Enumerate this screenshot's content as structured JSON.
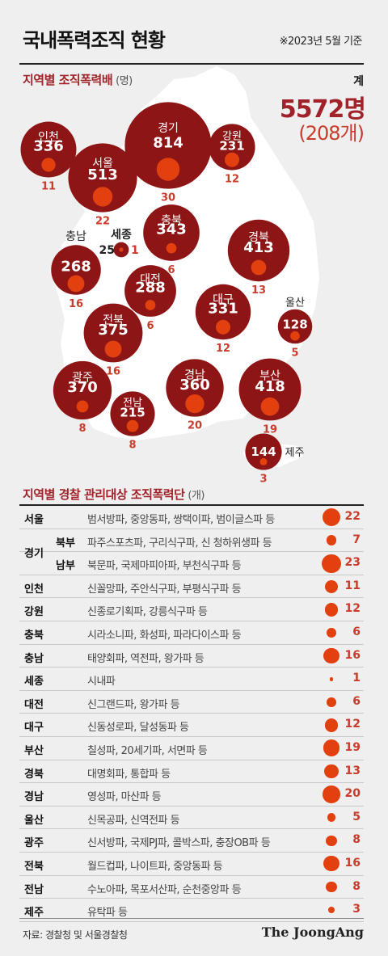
{
  "title": "국내폭력조직 현황",
  "as_of": "※2023년 5월 기준",
  "section1": {
    "label": "지역별 조직폭력배",
    "unit": "(명)"
  },
  "total": {
    "label": "계",
    "members": "5572명",
    "organizations": "(208개)"
  },
  "section2": {
    "label": "지역별 경찰 관리대상 조직폭력단",
    "unit": "(개)"
  },
  "gyeonggi_label": "경기",
  "source": "자료: 경찰청 및 서울경찰청",
  "logo": "The JoongAng",
  "colors": {
    "circle": "#8e1515",
    "inner_dot": "#e3400f",
    "accent": "#a2222a",
    "count": "#c93c2c",
    "map": "#ffffff"
  },
  "chart_data": {
    "type": "bubble-map",
    "title": "지역별 조직폭력배",
    "regions": [
      {
        "name": "인천",
        "members": 336,
        "orgs": 11
      },
      {
        "name": "경기",
        "members": 814,
        "orgs": 30
      },
      {
        "name": "강원",
        "members": 231,
        "orgs": 12
      },
      {
        "name": "서울",
        "members": 513,
        "orgs": 22
      },
      {
        "name": "충북",
        "members": 343,
        "orgs": 6
      },
      {
        "name": "세종",
        "members": 25,
        "orgs": 1
      },
      {
        "name": "충남",
        "members": 268,
        "orgs": 16
      },
      {
        "name": "경북",
        "members": 413,
        "orgs": 13
      },
      {
        "name": "대전",
        "members": 288,
        "orgs": 6
      },
      {
        "name": "대구",
        "members": 331,
        "orgs": 12
      },
      {
        "name": "울산",
        "members": 128,
        "orgs": 5
      },
      {
        "name": "전북",
        "members": 375,
        "orgs": 16
      },
      {
        "name": "광주",
        "members": 370,
        "orgs": 8
      },
      {
        "name": "경남",
        "members": 360,
        "orgs": 20
      },
      {
        "name": "부산",
        "members": 418,
        "orgs": 19
      },
      {
        "name": "전남",
        "members": 215,
        "orgs": 8
      },
      {
        "name": "제주",
        "members": 144,
        "orgs": 3
      }
    ]
  },
  "table": [
    {
      "region": "서울",
      "sub": "",
      "gangs": "범서방파, 중앙동파, 쌍택이파, 범이글스파 등",
      "count": 22
    },
    {
      "region": "",
      "sub": "북부",
      "gangs": "파주스포츠파, 구리식구파, 신 청하위생파 등",
      "count": 7
    },
    {
      "region": "",
      "sub": "남부",
      "gangs": "북문파, 국제마피아파, 부천식구파 등",
      "count": 23
    },
    {
      "region": "인천",
      "sub": "",
      "gangs": "신꼴망파, 주안식구파, 부평식구파 등",
      "count": 11
    },
    {
      "region": "강원",
      "sub": "",
      "gangs": "신종로기획파, 강릉식구파 등",
      "count": 12
    },
    {
      "region": "충북",
      "sub": "",
      "gangs": "시라소니파, 화성파, 파라다이스파 등",
      "count": 6
    },
    {
      "region": "충남",
      "sub": "",
      "gangs": "태양회파, 역전파, 왕가파 등",
      "count": 16
    },
    {
      "region": "세종",
      "sub": "",
      "gangs": "시내파",
      "count": 1
    },
    {
      "region": "대전",
      "sub": "",
      "gangs": "신그랜드파, 왕가파 등",
      "count": 6
    },
    {
      "region": "대구",
      "sub": "",
      "gangs": "신동성로파, 달성동파 등",
      "count": 12
    },
    {
      "region": "부산",
      "sub": "",
      "gangs": "칠성파, 20세기파, 서면파 등",
      "count": 19
    },
    {
      "region": "경북",
      "sub": "",
      "gangs": "대명회파, 통합파 등",
      "count": 13
    },
    {
      "region": "경남",
      "sub": "",
      "gangs": "영성파, 마산파 등",
      "count": 20
    },
    {
      "region": "울산",
      "sub": "",
      "gangs": "신목공파, 신역전파 등",
      "count": 5
    },
    {
      "region": "광주",
      "sub": "",
      "gangs": "신서방파, 국제PJ파, 콜박스파, 충장OB파 등",
      "count": 8
    },
    {
      "region": "전북",
      "sub": "",
      "gangs": "월드컵파, 나이트파, 중앙동파 등",
      "count": 16
    },
    {
      "region": "전남",
      "sub": "",
      "gangs": "수노아파, 목포서산파, 순천중앙파 등",
      "count": 8
    },
    {
      "region": "제주",
      "sub": "",
      "gangs": "유탁파 등",
      "count": 3
    }
  ]
}
